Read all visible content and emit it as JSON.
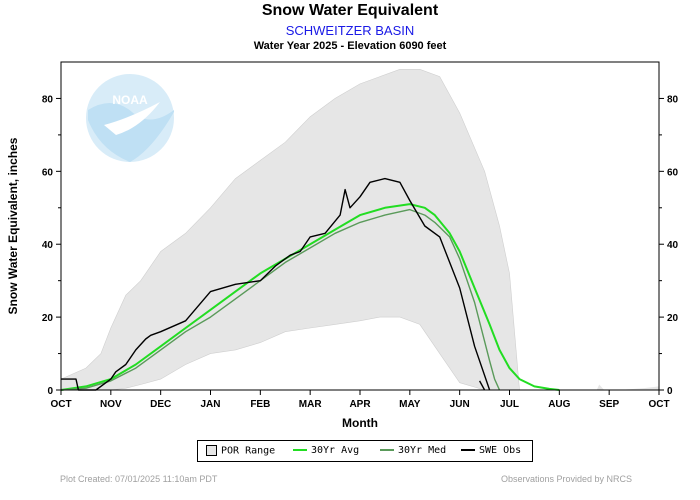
{
  "header": {
    "title": "Snow Water Equivalent",
    "station": "SCHWEITZER BASIN",
    "subtitle": "Water Year 2025 -  Elevation 6090 feet"
  },
  "footer": {
    "created": "Plot Created: 07/01/2025 11:10am PDT",
    "provider": "Observations Provided by NRCS"
  },
  "logo_text": "NOAA",
  "colors": {
    "por_range": "#e6e6e6",
    "avg30": "#22dd22",
    "med30": "#5a9a5a",
    "obs": "#000000"
  },
  "chart_data": {
    "type": "line",
    "xlabel": "Month",
    "ylabel": "Snow Water Equivalent, inches",
    "ylim": [
      0,
      90
    ],
    "yticks": [
      0,
      20,
      40,
      60,
      80
    ],
    "y_axis_right_labels": true,
    "xlim": [
      0,
      12
    ],
    "month_labels": [
      "OCT",
      "NOV",
      "DEC",
      "JAN",
      "FEB",
      "MAR",
      "APR",
      "MAY",
      "JUN",
      "JUL",
      "AUG",
      "SEP",
      "OCT"
    ],
    "grid": false,
    "legend": {
      "placement": "bottom",
      "entries": [
        "POR Range",
        "30Yr Avg",
        "30Yr Med",
        "SWE Obs"
      ]
    },
    "por_range": {
      "name": "POR Range",
      "x": [
        0,
        0.5,
        0.8,
        1.0,
        1.3,
        1.6,
        2.0,
        2.5,
        3.0,
        3.5,
        4.0,
        4.5,
        5.0,
        5.5,
        6.0,
        6.4,
        6.8,
        7.2,
        7.6,
        8.0,
        8.5,
        8.8,
        9.0,
        9.2
      ],
      "max": [
        3,
        6,
        10,
        17,
        26,
        30,
        38,
        43,
        50,
        58,
        63,
        68,
        75,
        80,
        84,
        86,
        88,
        88,
        86,
        76,
        60,
        45,
        32,
        0
      ],
      "min": [
        0,
        0,
        0,
        0,
        0.5,
        1.5,
        3,
        7,
        10,
        11,
        13,
        16,
        17,
        18,
        19,
        20,
        20,
        18,
        10,
        2,
        0,
        0,
        0,
        0
      ]
    },
    "series": [
      {
        "name": "30Yr Avg",
        "x": [
          0,
          0.5,
          1.0,
          1.5,
          2.0,
          2.5,
          3.0,
          3.5,
          4.0,
          4.5,
          5.0,
          5.5,
          6.0,
          6.5,
          7.0,
          7.3,
          7.5,
          7.8,
          8.0,
          8.3,
          8.6,
          8.8,
          9.0,
          9.2,
          9.5,
          9.8,
          10.0
        ],
        "values": [
          0,
          1,
          3,
          7,
          12,
          17,
          22,
          27,
          32,
          36,
          40,
          44,
          48,
          50,
          51,
          50,
          48,
          43,
          38,
          28,
          18,
          11,
          6,
          3,
          1,
          0.3,
          0
        ]
      },
      {
        "name": "30Yr Med",
        "x": [
          0,
          0.5,
          1.0,
          1.5,
          2.0,
          2.5,
          3.0,
          3.5,
          4.0,
          4.5,
          5.0,
          5.5,
          6.0,
          6.5,
          7.0,
          7.3,
          7.5,
          7.8,
          8.0,
          8.3,
          8.6,
          8.7,
          8.8
        ],
        "values": [
          0,
          0.5,
          2.5,
          6,
          11,
          16,
          20,
          25,
          30,
          35,
          39,
          43,
          46,
          48,
          49.5,
          48,
          46,
          42,
          36,
          24,
          8,
          3,
          0
        ]
      },
      {
        "name": "SWE Obs",
        "x": [
          0,
          0.3,
          0.35,
          0.7,
          1.0,
          1.1,
          1.3,
          1.5,
          1.7,
          1.8,
          2.0,
          2.5,
          3.0,
          3.5,
          4.0,
          4.3,
          4.6,
          4.8,
          5.0,
          5.3,
          5.6,
          5.7,
          5.8,
          6.0,
          6.2,
          6.5,
          6.8,
          7.0,
          7.3,
          7.6,
          8.0,
          8.3,
          8.6
        ],
        "values": [
          3,
          3,
          0,
          0,
          3,
          5,
          7,
          11,
          14,
          15,
          16,
          19,
          27,
          29,
          30,
          34,
          37,
          38,
          42,
          43,
          48,
          55,
          50,
          53,
          57,
          58,
          57,
          52,
          45,
          42,
          28,
          12,
          0
        ]
      }
    ]
  }
}
